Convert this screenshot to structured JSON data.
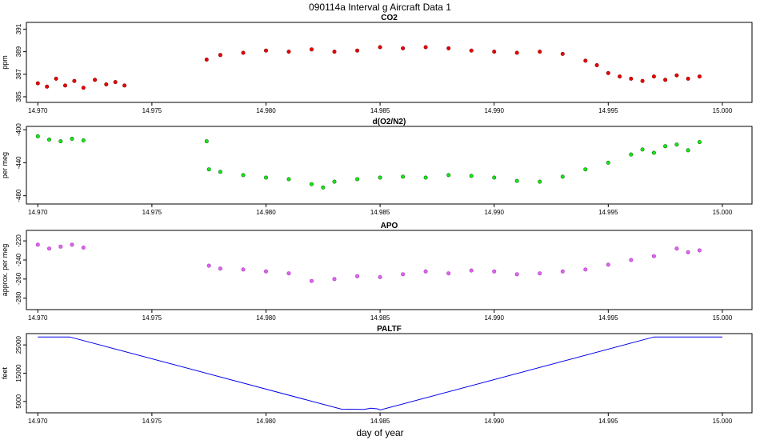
{
  "figure": {
    "title": "090114a   Interval g Aircraft Data 1",
    "xlabel": "day of year"
  },
  "chart_data": [
    {
      "type": "scatter",
      "title": "CO2",
      "ylabel": "ppm",
      "color": "#ee0000",
      "xlim": [
        14.9695,
        15.0013
      ],
      "ylim": [
        384.5,
        391.6
      ],
      "x_ticks": [
        "14.970",
        "14.975",
        "14.980",
        "14.985",
        "14.990",
        "14.995",
        "15.000"
      ],
      "y_ticks": [
        "385",
        "387",
        "389",
        "391"
      ],
      "series": [
        {
          "values": [
            [
              14.97,
              386.2
            ],
            [
              14.9704,
              385.9
            ],
            [
              14.9708,
              386.6
            ],
            [
              14.9712,
              386.0
            ],
            [
              14.9716,
              386.4
            ],
            [
              14.972,
              385.8
            ],
            [
              14.9725,
              386.5
            ],
            [
              14.973,
              386.1
            ],
            [
              14.9734,
              386.3
            ],
            [
              14.9738,
              386.0
            ],
            [
              14.9774,
              388.3
            ],
            [
              14.978,
              388.7
            ],
            [
              14.979,
              388.9
            ],
            [
              14.98,
              389.1
            ],
            [
              14.981,
              389.0
            ],
            [
              14.982,
              389.2
            ],
            [
              14.983,
              389.0
            ],
            [
              14.984,
              389.1
            ],
            [
              14.985,
              389.4
            ],
            [
              14.986,
              389.3
            ],
            [
              14.987,
              389.4
            ],
            [
              14.988,
              389.3
            ],
            [
              14.989,
              389.1
            ],
            [
              14.99,
              389.0
            ],
            [
              14.991,
              388.9
            ],
            [
              14.992,
              389.0
            ],
            [
              14.993,
              388.8
            ],
            [
              14.994,
              388.2
            ],
            [
              14.9945,
              387.8
            ],
            [
              14.995,
              387.1
            ],
            [
              14.9955,
              386.8
            ],
            [
              14.996,
              386.6
            ],
            [
              14.9965,
              386.4
            ],
            [
              14.997,
              386.8
            ],
            [
              14.9975,
              386.5
            ],
            [
              14.998,
              386.9
            ],
            [
              14.9985,
              386.6
            ],
            [
              14.999,
              386.8
            ]
          ]
        }
      ]
    },
    {
      "type": "scatter",
      "title": "d(O2/N2)",
      "ylabel": "per meg",
      "color": "#11ee11",
      "xlim": [
        14.9695,
        15.0013
      ],
      "ylim": [
        -490,
        -396
      ],
      "x_ticks": [
        "14.970",
        "14.975",
        "14.980",
        "14.985",
        "14.990",
        "14.995",
        "15.000"
      ],
      "y_ticks": [
        "-400",
        "-440",
        "-480"
      ],
      "series": [
        {
          "values": [
            [
              14.97,
              -408
            ],
            [
              14.9705,
              -412
            ],
            [
              14.971,
              -414
            ],
            [
              14.9715,
              -411
            ],
            [
              14.972,
              -413
            ],
            [
              14.9774,
              -414
            ],
            [
              14.9775,
              -448
            ],
            [
              14.978,
              -451
            ],
            [
              14.979,
              -455
            ],
            [
              14.98,
              -458
            ],
            [
              14.981,
              -460
            ],
            [
              14.982,
              -466
            ],
            [
              14.9825,
              -470
            ],
            [
              14.983,
              -463
            ],
            [
              14.984,
              -460
            ],
            [
              14.985,
              -458
            ],
            [
              14.986,
              -457
            ],
            [
              14.987,
              -458
            ],
            [
              14.988,
              -455
            ],
            [
              14.989,
              -456
            ],
            [
              14.99,
              -458
            ],
            [
              14.991,
              -462
            ],
            [
              14.992,
              -463
            ],
            [
              14.993,
              -457
            ],
            [
              14.994,
              -448
            ],
            [
              14.995,
              -440
            ],
            [
              14.996,
              -430
            ],
            [
              14.9965,
              -424
            ],
            [
              14.997,
              -428
            ],
            [
              14.9975,
              -420
            ],
            [
              14.998,
              -418
            ],
            [
              14.9985,
              -425
            ],
            [
              14.999,
              -415
            ]
          ]
        }
      ]
    },
    {
      "type": "scatter",
      "title": "APO",
      "ylabel": "approx. per meg",
      "color": "#dd66ee",
      "xlim": [
        14.9695,
        15.0013
      ],
      "ylim": [
        -292,
        -209
      ],
      "x_ticks": [
        "14.970",
        "14.975",
        "14.980",
        "14.985",
        "14.990",
        "14.995",
        "15.000"
      ],
      "y_ticks": [
        "-220",
        "-240",
        "-260",
        "-280"
      ],
      "series": [
        {
          "values": [
            [
              14.97,
              -224
            ],
            [
              14.9705,
              -228
            ],
            [
              14.971,
              -226
            ],
            [
              14.9715,
              -224
            ],
            [
              14.972,
              -227
            ],
            [
              14.9775,
              -246
            ],
            [
              14.978,
              -249
            ],
            [
              14.979,
              -250
            ],
            [
              14.98,
              -252
            ],
            [
              14.981,
              -254
            ],
            [
              14.982,
              -262
            ],
            [
              14.983,
              -260
            ],
            [
              14.984,
              -257
            ],
            [
              14.985,
              -258
            ],
            [
              14.986,
              -255
            ],
            [
              14.987,
              -252
            ],
            [
              14.988,
              -254
            ],
            [
              14.989,
              -251
            ],
            [
              14.99,
              -252
            ],
            [
              14.991,
              -255
            ],
            [
              14.992,
              -254
            ],
            [
              14.993,
              -252
            ],
            [
              14.994,
              -250
            ],
            [
              14.995,
              -245
            ],
            [
              14.996,
              -240
            ],
            [
              14.997,
              -236
            ],
            [
              14.998,
              -228
            ],
            [
              14.9985,
              -232
            ],
            [
              14.999,
              -230
            ]
          ]
        }
      ]
    },
    {
      "type": "line",
      "title": "PALTF",
      "ylabel": "feet",
      "color": "#0000ee",
      "xlim": [
        14.9695,
        15.0013
      ],
      "ylim": [
        1000,
        29000
      ],
      "x_ticks": [
        "14.970",
        "14.975",
        "14.980",
        "14.985",
        "14.990",
        "14.995",
        "15.000"
      ],
      "y_ticks": [
        "5000",
        "15000",
        "25000"
      ],
      "series": [
        {
          "values": [
            [
              14.97,
              27800
            ],
            [
              14.9714,
              27800
            ],
            [
              14.9833,
              2300
            ],
            [
              14.9843,
              2200
            ],
            [
              14.9846,
              2600
            ],
            [
              14.9849,
              2400
            ],
            [
              14.985,
              2000
            ],
            [
              14.997,
              27800
            ],
            [
              15.0,
              27800
            ]
          ]
        }
      ]
    }
  ]
}
